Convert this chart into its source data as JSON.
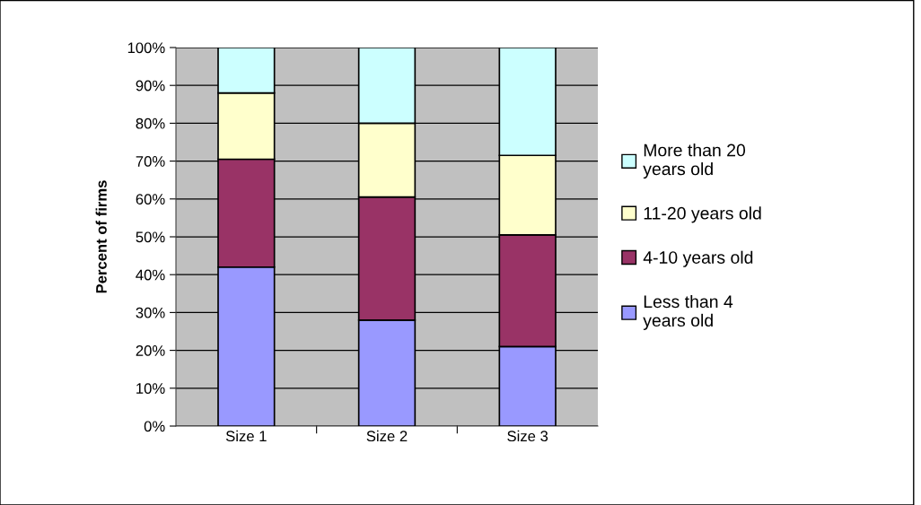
{
  "chart_data": {
    "type": "bar",
    "stacked": true,
    "ylabel": "Percent of firms",
    "categories": [
      "Size 1",
      "Size 2",
      "Size 3"
    ],
    "series": [
      {
        "name": "Less than 4\nyears old",
        "color": "#9999ff",
        "values": [
          42,
          28,
          21
        ]
      },
      {
        "name": "4-10 years old",
        "color": "#993366",
        "values": [
          28.5,
          32.5,
          29.5
        ]
      },
      {
        "name": "11-20 years old",
        "color": "#ffffcc",
        "values": [
          17.5,
          19.5,
          21
        ]
      },
      {
        "name": "More than 20\nyears old",
        "color": "#ccffff",
        "values": [
          12,
          20,
          28.5
        ]
      }
    ],
    "ylim": [
      0,
      100
    ],
    "yticks": [
      {
        "value": 0,
        "label": "0%"
      },
      {
        "value": 10,
        "label": "10%"
      },
      {
        "value": 20,
        "label": "20%"
      },
      {
        "value": 30,
        "label": "30%"
      },
      {
        "value": 40,
        "label": "40%"
      },
      {
        "value": 50,
        "label": "50%"
      },
      {
        "value": 60,
        "label": "60%"
      },
      {
        "value": 70,
        "label": "70%"
      },
      {
        "value": 80,
        "label": "80%"
      },
      {
        "value": 90,
        "label": "90%"
      },
      {
        "value": 100,
        "label": "100%"
      }
    ],
    "grid": "y",
    "legend": "right"
  }
}
